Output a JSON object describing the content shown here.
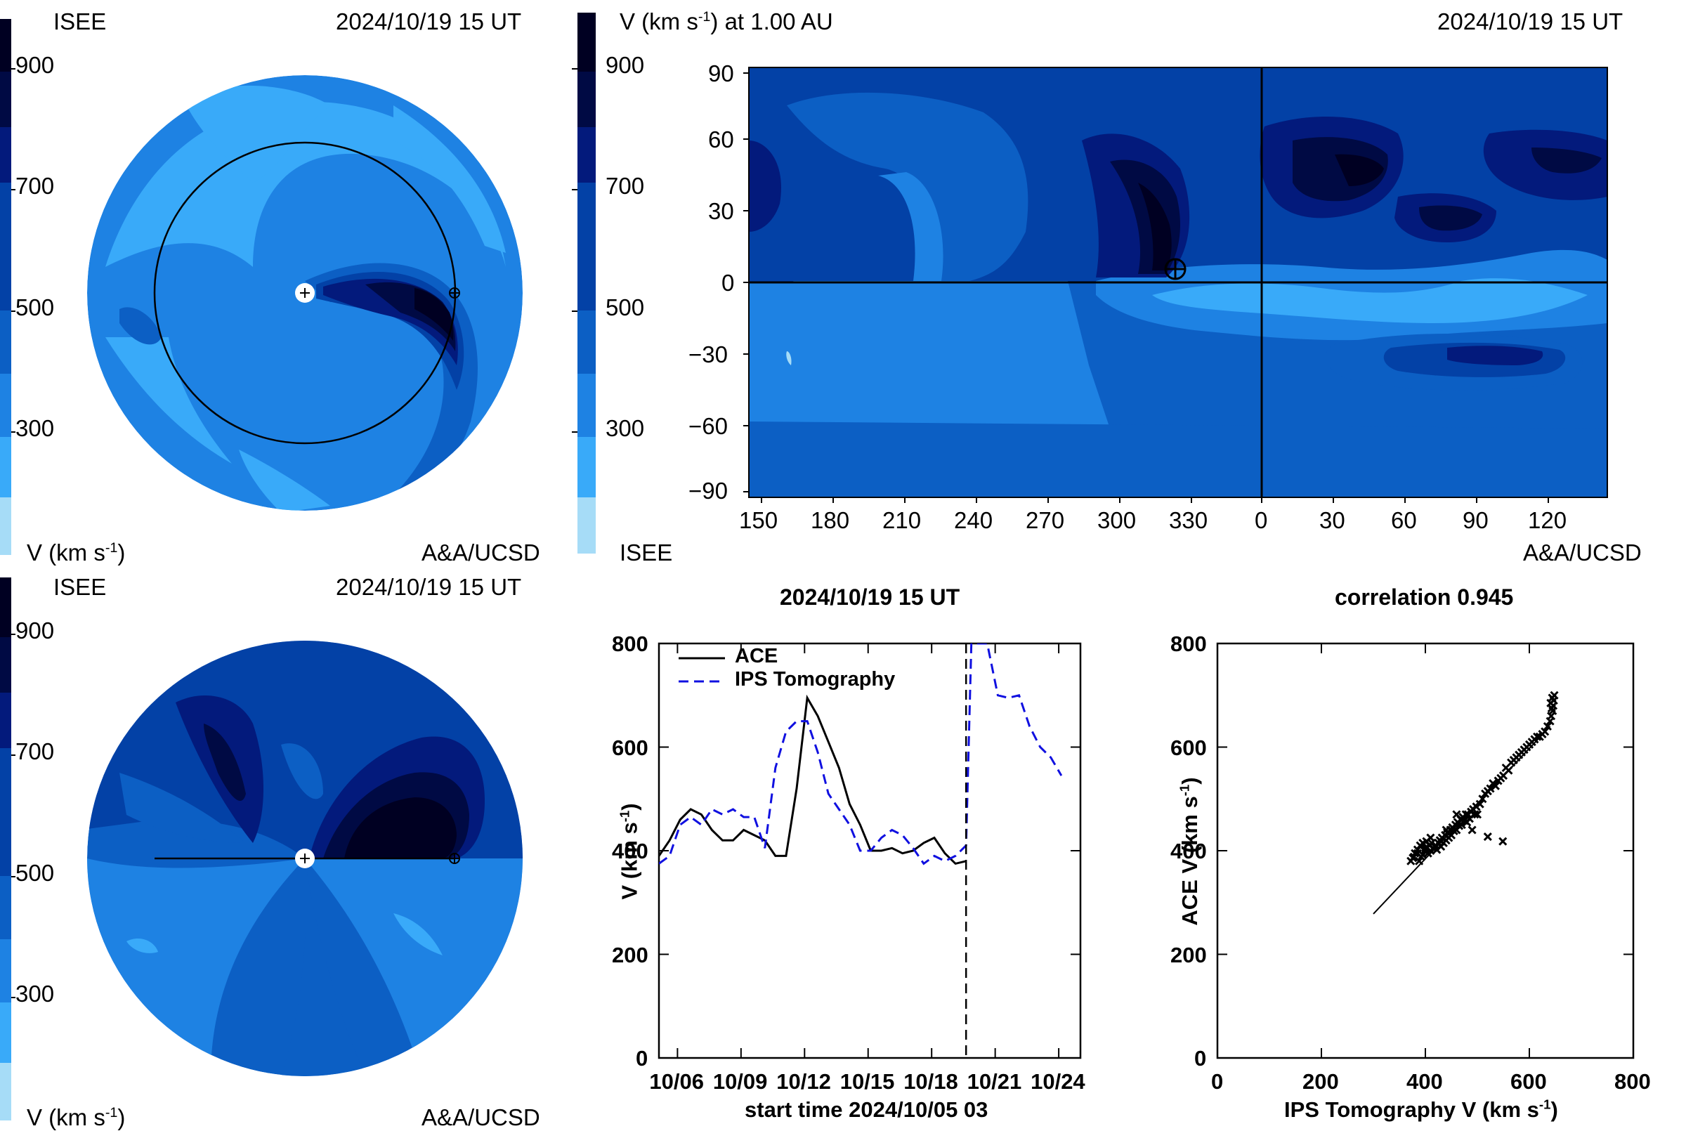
{
  "colors": {
    "v1": "#a6dcf7",
    "v2": "#39aaf9",
    "v3": "#1e82e3",
    "v4": "#0c5fc4",
    "v5": "#0341a6",
    "v6": "#031a7c",
    "v7": "#000a44",
    "v8": "#000022"
  },
  "panel_top_left": {
    "tag_left": "ISEE",
    "timestamp": "2024/10/19 15 UT",
    "colorbar_ticks": [
      "900",
      "700",
      "500",
      "300"
    ],
    "unit_label": "V (km s",
    "unit_sup": "-1",
    "unit_close": ")",
    "credit": "A&A/UCSD"
  },
  "panel_top_right": {
    "colorbar_title": "V (km s",
    "colorbar_title_sup": "-1",
    "colorbar_title_rest": ") at 1.00 AU",
    "timestamp": "2024/10/19 15 UT",
    "colorbar_ticks": [
      "900",
      "700",
      "500",
      "300"
    ],
    "tag_bottom": "ISEE",
    "credit": "A&A/UCSD",
    "y_ticks": [
      "90",
      "60",
      "30",
      "0",
      "−30",
      "−60",
      "−90"
    ],
    "x_ticks": [
      "150",
      "180",
      "210",
      "240",
      "270",
      "300",
      "330",
      "0",
      "30",
      "60",
      "90",
      "120"
    ]
  },
  "panel_bottom_left": {
    "tag_left": "ISEE",
    "timestamp": "2024/10/19 15 UT",
    "colorbar_ticks": [
      "900",
      "700",
      "500",
      "300"
    ],
    "unit_label": "V (km s",
    "unit_sup": "-1",
    "unit_close": ")",
    "credit": "A&A/UCSD"
  },
  "chart_data": [
    {
      "type": "line",
      "title": "2024/10/19 15 UT",
      "xlabel": "start time 2024/10/05 03",
      "ylabel": "V (km s",
      "ylabel_sup": "-1",
      "ylabel_close": ")",
      "ylim": [
        0,
        800
      ],
      "xlim_days": [
        0,
        19.9
      ],
      "x_tick_labels": [
        "10/06",
        "10/09",
        "10/12",
        "10/15",
        "10/18",
        "10/21",
        "10/24"
      ],
      "y_tick_labels": [
        "0",
        "200",
        "400",
        "600",
        "800"
      ],
      "current_time_marker": "10/19 15",
      "legend_position": "top-left",
      "series": [
        {
          "name": "ACE",
          "style": "solid",
          "color": "#000000",
          "x": [
            "10/05 03",
            "10/05 15",
            "10/06 03",
            "10/06 15",
            "10/07 03",
            "10/07 15",
            "10/08 03",
            "10/08 15",
            "10/09 03",
            "10/09 15",
            "10/10 03",
            "10/10 15",
            "10/11 03",
            "10/11 15",
            "10/12 03",
            "10/12 15",
            "10/13 03",
            "10/13 15",
            "10/14 03",
            "10/14 15",
            "10/15 03",
            "10/15 15",
            "10/16 03",
            "10/16 15",
            "10/17 03",
            "10/17 15",
            "10/18 03",
            "10/18 15",
            "10/19 03",
            "10/19 15"
          ],
          "values": [
            390,
            420,
            460,
            480,
            470,
            440,
            420,
            420,
            440,
            430,
            420,
            390,
            390,
            520,
            695,
            660,
            610,
            560,
            490,
            450,
            400,
            400,
            405,
            395,
            400,
            415,
            425,
            395,
            375,
            380
          ]
        },
        {
          "name": "IPS Tomography",
          "style": "dashed",
          "color": "#1010e0",
          "x": [
            "10/05 03",
            "10/05 15",
            "10/06 03",
            "10/06 15",
            "10/07 03",
            "10/07 15",
            "10/08 03",
            "10/08 15",
            "10/09 03",
            "10/09 15",
            "10/10 03",
            "10/10 15",
            "10/11 03",
            "10/11 15",
            "10/12 03",
            "10/12 15",
            "10/13 03",
            "10/13 15",
            "10/14 03",
            "10/14 15",
            "10/15 03",
            "10/15 15",
            "10/16 03",
            "10/16 15",
            "10/17 03",
            "10/17 15",
            "10/18 03",
            "10/18 15",
            "10/19 03",
            "10/19 15",
            "10/19 21",
            "10/20 03",
            "10/20 15",
            "10/21 03",
            "10/21 15",
            "10/22 03",
            "10/22 15",
            "10/23 03",
            "10/23 15",
            "10/24 03"
          ],
          "values": [
            375,
            390,
            450,
            465,
            450,
            480,
            470,
            480,
            465,
            465,
            405,
            560,
            630,
            650,
            650,
            590,
            510,
            480,
            450,
            400,
            400,
            425,
            440,
            430,
            405,
            375,
            390,
            380,
            390,
            410,
            800,
            800,
            800,
            700,
            695,
            700,
            640,
            600,
            580,
            545
          ]
        }
      ]
    },
    {
      "type": "scatter",
      "title": "correlation 0.945",
      "xlabel": "IPS Tomography V (km s",
      "xlabel_sup": "-1",
      "xlabel_close": ")",
      "ylabel": "ACE V (km s",
      "ylabel_sup": "-1",
      "ylabel_close": ")",
      "xlim": [
        0,
        800
      ],
      "ylim": [
        0,
        800
      ],
      "x_tick_labels": [
        "0",
        "200",
        "400",
        "600",
        "800"
      ],
      "y_tick_labels": [
        "0",
        "200",
        "400",
        "600",
        "800"
      ],
      "fit_line": {
        "x": [
          300,
          640
        ],
        "y": [
          278,
          640
        ]
      },
      "points": [
        [
          372,
          380
        ],
        [
          378,
          388
        ],
        [
          380,
          395
        ],
        [
          385,
          402
        ],
        [
          388,
          380
        ],
        [
          390,
          410
        ],
        [
          395,
          392
        ],
        [
          398,
          400
        ],
        [
          400,
          405
        ],
        [
          402,
          418
        ],
        [
          405,
          395
        ],
        [
          408,
          410
        ],
        [
          410,
          400
        ],
        [
          412,
          415
        ],
        [
          415,
          405
        ],
        [
          418,
          408
        ],
        [
          420,
          410
        ],
        [
          422,
          402
        ],
        [
          425,
          415
        ],
        [
          428,
          420
        ],
        [
          430,
          408
        ],
        [
          432,
          425
        ],
        [
          435,
          415
        ],
        [
          438,
          430
        ],
        [
          440,
          420
        ],
        [
          442,
          435
        ],
        [
          445,
          425
        ],
        [
          448,
          440
        ],
        [
          450,
          430
        ],
        [
          452,
          445
        ],
        [
          455,
          438
        ],
        [
          458,
          450
        ],
        [
          460,
          440
        ],
        [
          462,
          455
        ],
        [
          465,
          448
        ],
        [
          468,
          460
        ],
        [
          470,
          450
        ],
        [
          472,
          465
        ],
        [
          475,
          458
        ],
        [
          478,
          470
        ],
        [
          480,
          455
        ],
        [
          482,
          470
        ],
        [
          485,
          462
        ],
        [
          488,
          475
        ],
        [
          490,
          440
        ],
        [
          492,
          480
        ],
        [
          495,
          470
        ],
        [
          498,
          485
        ],
        [
          500,
          470
        ],
        [
          505,
          490
        ],
        [
          510,
          500
        ],
        [
          515,
          510
        ],
        [
          520,
          515
        ],
        [
          525,
          520
        ],
        [
          530,
          530
        ],
        [
          535,
          525
        ],
        [
          540,
          535
        ],
        [
          545,
          540
        ],
        [
          550,
          545
        ],
        [
          555,
          560
        ],
        [
          560,
          555
        ],
        [
          565,
          570
        ],
        [
          570,
          575
        ],
        [
          575,
          580
        ],
        [
          580,
          585
        ],
        [
          585,
          590
        ],
        [
          590,
          595
        ],
        [
          595,
          600
        ],
        [
          600,
          605
        ],
        [
          605,
          610
        ],
        [
          610,
          615
        ],
        [
          615,
          620
        ],
        [
          620,
          620
        ],
        [
          625,
          625
        ],
        [
          630,
          630
        ],
        [
          635,
          640
        ],
        [
          640,
          650
        ],
        [
          642,
          660
        ],
        [
          645,
          670
        ],
        [
          646,
          680
        ],
        [
          647,
          690
        ],
        [
          648,
          700
        ],
        [
          644,
          695
        ],
        [
          641,
          685
        ],
        [
          643,
          675
        ],
        [
          549,
          418
        ],
        [
          520,
          427
        ],
        [
          470,
          460
        ],
        [
          460,
          470
        ],
        [
          440,
          440
        ],
        [
          430,
          418
        ],
        [
          410,
          425
        ],
        [
          395,
          415
        ],
        [
          385,
          395
        ],
        [
          392,
          388
        ],
        [
          376,
          386
        ]
      ]
    }
  ]
}
